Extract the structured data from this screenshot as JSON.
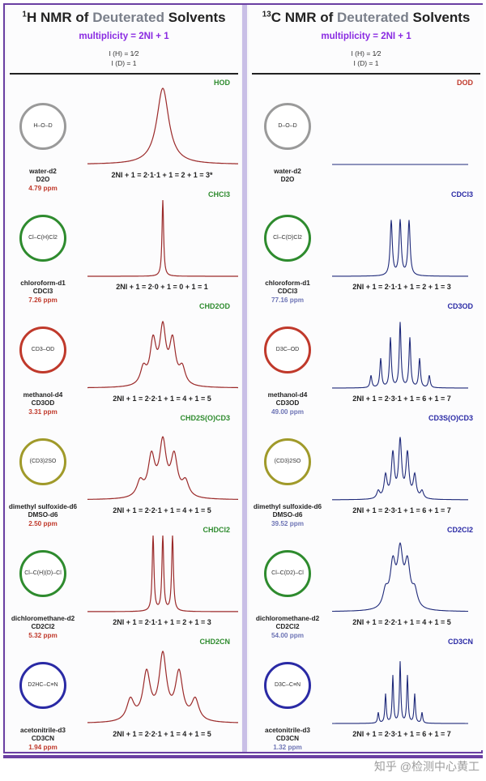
{
  "header": {
    "left_title_prefix": "1",
    "left_title_main": "H NMR of ",
    "left_title_deut": "Deuterated",
    "left_title_end": " Solvents",
    "right_title_prefix": "13",
    "right_title_main": "C NMR of ",
    "right_title_deut": "Deuterated",
    "right_title_end": " Solvents",
    "multiplicity": "multiplicity = 2NI + 1",
    "spin_h": "I (H) = 1⁄2",
    "spin_d": "I (D) = 1"
  },
  "colors": {
    "proton_spectrum": "#9b2a2a",
    "carbon_spectrum": "#1f2a7a",
    "accent": "#8a2be2"
  },
  "rows": [
    {
      "molecule": "H–O–D",
      "circle_color": "#9a9a9a",
      "name": "water-d2",
      "formula": "D2O",
      "h_ppm": "4.79 ppm",
      "c_ppm": "",
      "h_label": "HOD",
      "c_label": "DOD",
      "h_mult": "2NI + 1 = 2·1·1 + 1 = 2 + 1 = 3*",
      "c_mult": "",
      "c_mol": "D–O–D"
    },
    {
      "molecule": "Cl–C(H)Cl2",
      "circle_color": "#2e8b2e",
      "name": "chloroform-d1",
      "formula": "CDCl3",
      "h_ppm": "7.26 ppm",
      "c_ppm": "77.16 ppm",
      "h_label": "CHCl3",
      "c_label": "CDCl3",
      "h_mult": "2NI + 1 = 2·0 + 1 = 0 + 1 = 1",
      "c_mult": "2NI + 1 = 2·1·1 + 1 = 2 + 1 = 3",
      "c_mol": "Cl–C(D)Cl2"
    },
    {
      "molecule": "CD3–OD",
      "circle_color": "#c0392b",
      "name": "methanol-d4",
      "formula": "CD3OD",
      "h_ppm": "3.31 ppm",
      "c_ppm": "49.00 ppm",
      "h_label": "CHD2OD",
      "c_label": "CD3OD",
      "h_mult": "2NI + 1 = 2·2·1 + 1 = 4 + 1 = 5",
      "c_mult": "2NI + 1 = 2·3·1 + 1 = 6 + 1 = 7",
      "c_mol": "D3C–OD"
    },
    {
      "molecule": "(CD3)2SO",
      "circle_color": "#a09a2a",
      "name": "dimethyl sulfoxide-d6",
      "formula": "DMSO-d6",
      "h_ppm": "2.50 ppm",
      "c_ppm": "39.52 ppm",
      "h_label": "CHD2S(O)CD3",
      "c_label": "CD3S(O)CD3",
      "h_mult": "2NI + 1 = 2·2·1 + 1 = 4 + 1 = 5",
      "c_mult": "2NI + 1 = 2·3·1 + 1 = 6 + 1 = 7",
      "c_mol": "(CD3)2SO"
    },
    {
      "molecule": "Cl–C(H)(D)–Cl",
      "circle_color": "#2e8b2e",
      "name": "dichloromethane-d2",
      "formula": "CD2Cl2",
      "h_ppm": "5.32 ppm",
      "c_ppm": "54.00 ppm",
      "h_label": "CHDCl2",
      "c_label": "CD2Cl2",
      "h_mult": "2NI + 1 = 2·1·1 + 1 = 2 + 1 = 3",
      "c_mult": "2NI + 1 = 2·2·1 + 1 = 4 + 1 = 5",
      "c_mol": "Cl–C(D2)–Cl"
    },
    {
      "molecule": "D2HC–C≡N",
      "circle_color": "#2a2aa5",
      "name": "acetonitrile-d3",
      "formula": "CD3CN",
      "h_ppm": "1.94 ppm",
      "c_ppm": "1.32 ppm",
      "h_label": "CHD2CN",
      "c_label": "CD3CN",
      "h_mult": "2NI + 1 = 2·2·1 + 1 = 4 + 1 = 5",
      "c_mult": "2NI + 1 = 2·3·1 + 1 = 6 + 1 = 7",
      "c_mol": "D3C–C≡N"
    }
  ],
  "watermark": "知乎 @检测中心黄工"
}
